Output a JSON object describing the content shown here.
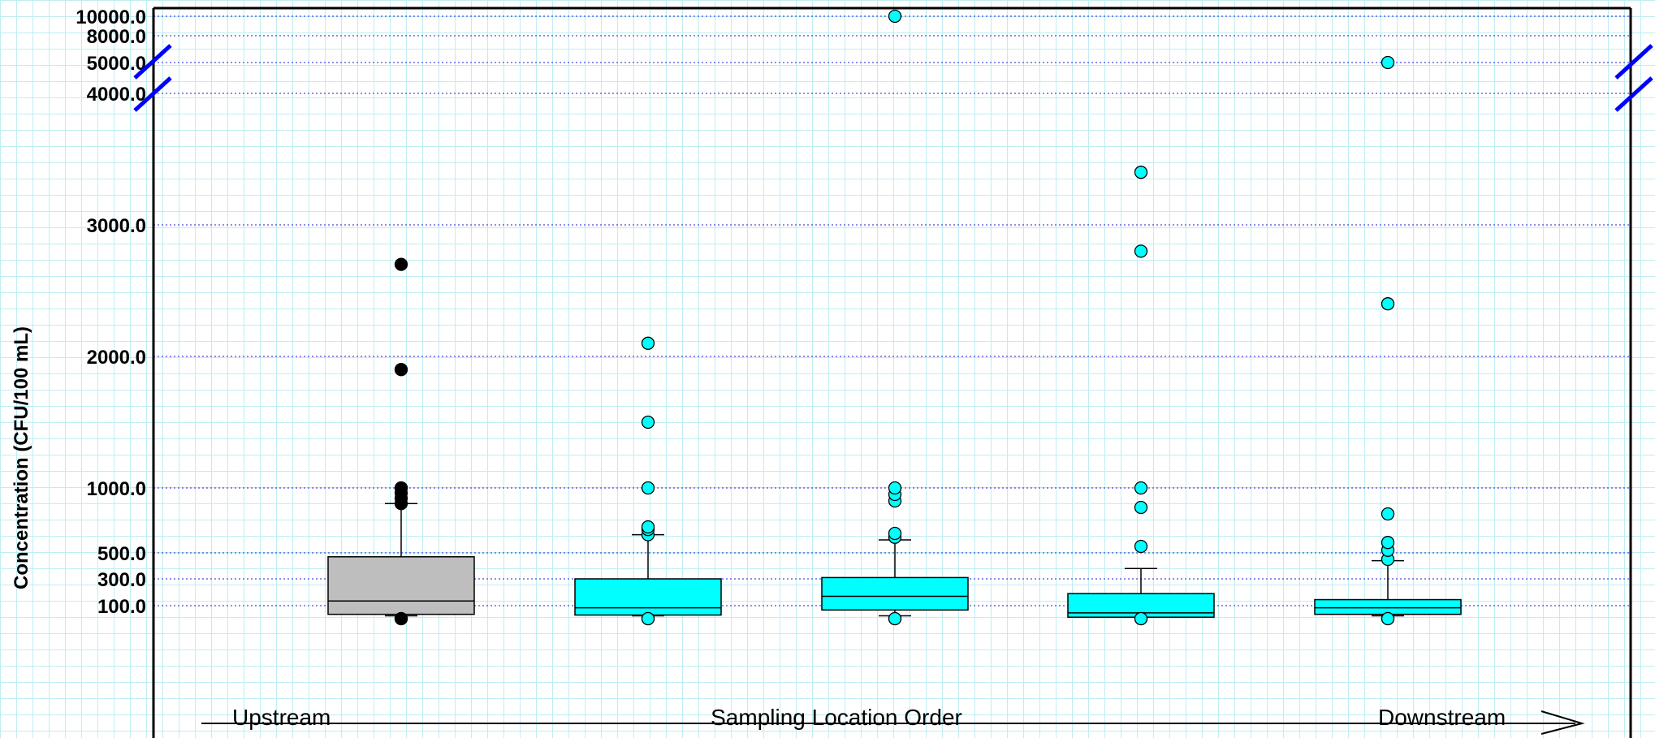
{
  "chart_data": {
    "type": "box",
    "ylabel": "Concentration (CFU/100 mL)",
    "y_ticks": [
      100,
      300,
      500,
      1000,
      2000,
      3000,
      4000,
      5000,
      8000,
      10000
    ],
    "y_tick_labels": [
      "100.0",
      "300.0",
      "500.0",
      "1000.0",
      "2000.0",
      "3000.0",
      "4000.0",
      "5000.0",
      "8000.0",
      "10000.0"
    ],
    "y_axis_break": "between 4000.0 and 5000.0",
    "grid": "dotted horizontal at ticks",
    "bottom_annotation": {
      "left": "Upstream",
      "center": "Sampling Location Order",
      "right": "Downstream"
    },
    "series": [
      {
        "color": "#bebebe",
        "outlier_fill": "#000000",
        "whisker_low": 30,
        "q1": 40,
        "median": 135,
        "q3": 470,
        "whisker_high": 880,
        "outliers": [
          10,
          10,
          880,
          920,
          960,
          1000,
          1000,
          1900,
          2700
        ]
      },
      {
        "color": "#00ffff",
        "outlier_fill": "#00ffff",
        "whisker_low": 30,
        "q1": 35,
        "median": 85,
        "q3": 300,
        "whisker_high": 640,
        "outliers": [
          10,
          10,
          640,
          680,
          700,
          1000,
          1500,
          2100
        ]
      },
      {
        "color": "#00ffff",
        "outlier_fill": "#00ffff",
        "whisker_low": 30,
        "q1": 70,
        "median": 170,
        "q3": 310,
        "whisker_high": 600,
        "outliers": [
          10,
          10,
          620,
          650,
          900,
          950,
          1000,
          10000
        ]
      },
      {
        "color": "#00ffff",
        "outlier_fill": "#00ffff",
        "whisker_low": 20,
        "q1": 20,
        "median": 50,
        "q3": 190,
        "whisker_high": 380,
        "outliers": [
          10,
          10,
          550,
          850,
          1000,
          2800,
          3400
        ]
      },
      {
        "color": "#00ffff",
        "outlier_fill": "#00ffff",
        "whisker_low": 30,
        "q1": 40,
        "median": 85,
        "q3": 145,
        "whisker_high": 440,
        "outliers": [
          10,
          10,
          450,
          520,
          580,
          800,
          2400,
          5000
        ]
      }
    ]
  }
}
